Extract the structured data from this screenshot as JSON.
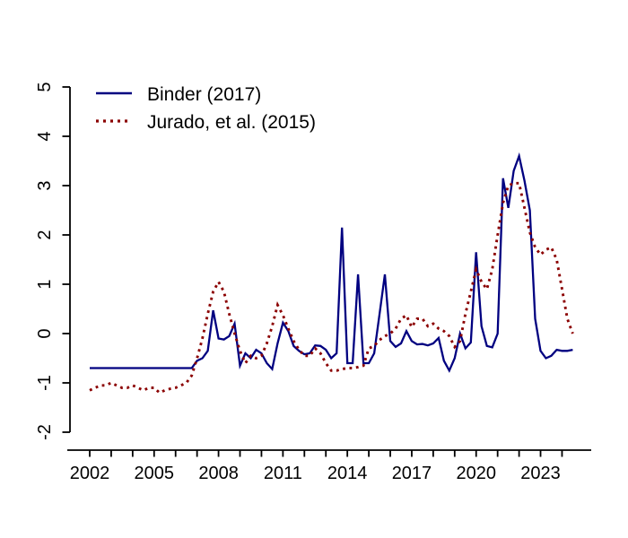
{
  "chart_data": {
    "type": "line",
    "title": "",
    "xlabel": "",
    "ylabel": "",
    "grid": false,
    "legend_position": "top-left",
    "x_start": 2002,
    "x_step_years": 0.25,
    "frequency": "quarterly",
    "x_axis": {
      "tick_interval_years": 1,
      "first_tick": 2002,
      "last_tick": 2024,
      "label_ticks": [
        "2002",
        "2005",
        "2008",
        "2011",
        "2014",
        "2017",
        "2020",
        "2023"
      ]
    },
    "y_axis": {
      "ticks": [
        "-2",
        "-1",
        "0",
        "1",
        "2",
        "3",
        "4",
        "5"
      ],
      "tick_values": [
        -2,
        -1,
        0,
        1,
        2,
        3,
        4,
        5
      ],
      "ylim": [
        -2.3,
        5.3
      ]
    },
    "series": [
      {
        "name": "Binder (2017)",
        "color": "#000080",
        "style": "solid",
        "values": [
          -0.7,
          -0.7,
          -0.7,
          -0.7,
          -0.7,
          -0.7,
          -0.7,
          -0.7,
          -0.7,
          -0.7,
          -0.7,
          -0.7,
          -0.7,
          -0.7,
          -0.7,
          -0.7,
          -0.7,
          -0.7,
          -0.7,
          -0.7,
          -0.55,
          -0.5,
          -0.35,
          0.47,
          -0.1,
          -0.12,
          -0.05,
          0.2,
          -0.65,
          -0.4,
          -0.5,
          -0.33,
          -0.4,
          -0.6,
          -0.72,
          -0.2,
          0.22,
          0.05,
          -0.25,
          -0.35,
          -0.42,
          -0.4,
          -0.24,
          -0.25,
          -0.33,
          -0.5,
          -0.4,
          2.15,
          -0.6,
          -0.6,
          1.2,
          -0.6,
          -0.6,
          -0.4,
          0.4,
          1.2,
          -0.15,
          -0.27,
          -0.2,
          0.05,
          -0.15,
          -0.22,
          -0.21,
          -0.24,
          -0.2,
          -0.09,
          -0.55,
          -0.75,
          -0.5,
          0.0,
          -0.3,
          -0.18,
          1.65,
          0.15,
          -0.25,
          -0.28,
          0.0,
          3.15,
          2.55,
          3.3,
          3.6,
          3.1,
          2.5,
          0.3,
          -0.35,
          -0.5,
          -0.45,
          -0.33,
          -0.35,
          -0.35,
          -0.33
        ]
      },
      {
        "name": "Jurado, et al. (2015)",
        "color": "#8B0000",
        "style": "dotted",
        "values": [
          -1.15,
          -1.1,
          -1.05,
          -1.05,
          -1.0,
          -1.05,
          -1.1,
          -1.1,
          -1.05,
          -1.1,
          -1.15,
          -1.1,
          -1.1,
          -1.2,
          -1.15,
          -1.12,
          -1.1,
          -1.05,
          -1.0,
          -0.85,
          -0.5,
          -0.1,
          0.4,
          0.85,
          1.05,
          0.85,
          0.4,
          0.0,
          -0.35,
          -0.6,
          -0.45,
          -0.5,
          -0.45,
          -0.2,
          0.15,
          0.58,
          0.37,
          0.1,
          -0.15,
          -0.33,
          -0.45,
          -0.45,
          -0.3,
          -0.4,
          -0.6,
          -0.75,
          -0.75,
          -0.72,
          -0.7,
          -0.7,
          -0.68,
          -0.65,
          -0.3,
          -0.25,
          -0.13,
          -0.05,
          0.0,
          0.1,
          0.3,
          0.37,
          0.13,
          0.3,
          0.3,
          0.15,
          0.2,
          0.1,
          0.05,
          -0.05,
          -0.27,
          -0.15,
          0.4,
          0.85,
          1.3,
          1.05,
          0.9,
          1.3,
          2.0,
          2.65,
          3.0,
          3.05,
          3.05,
          2.55,
          2.05,
          1.75,
          1.6,
          1.7,
          1.75,
          1.5,
          0.9,
          0.3,
          0.0
        ]
      }
    ]
  }
}
